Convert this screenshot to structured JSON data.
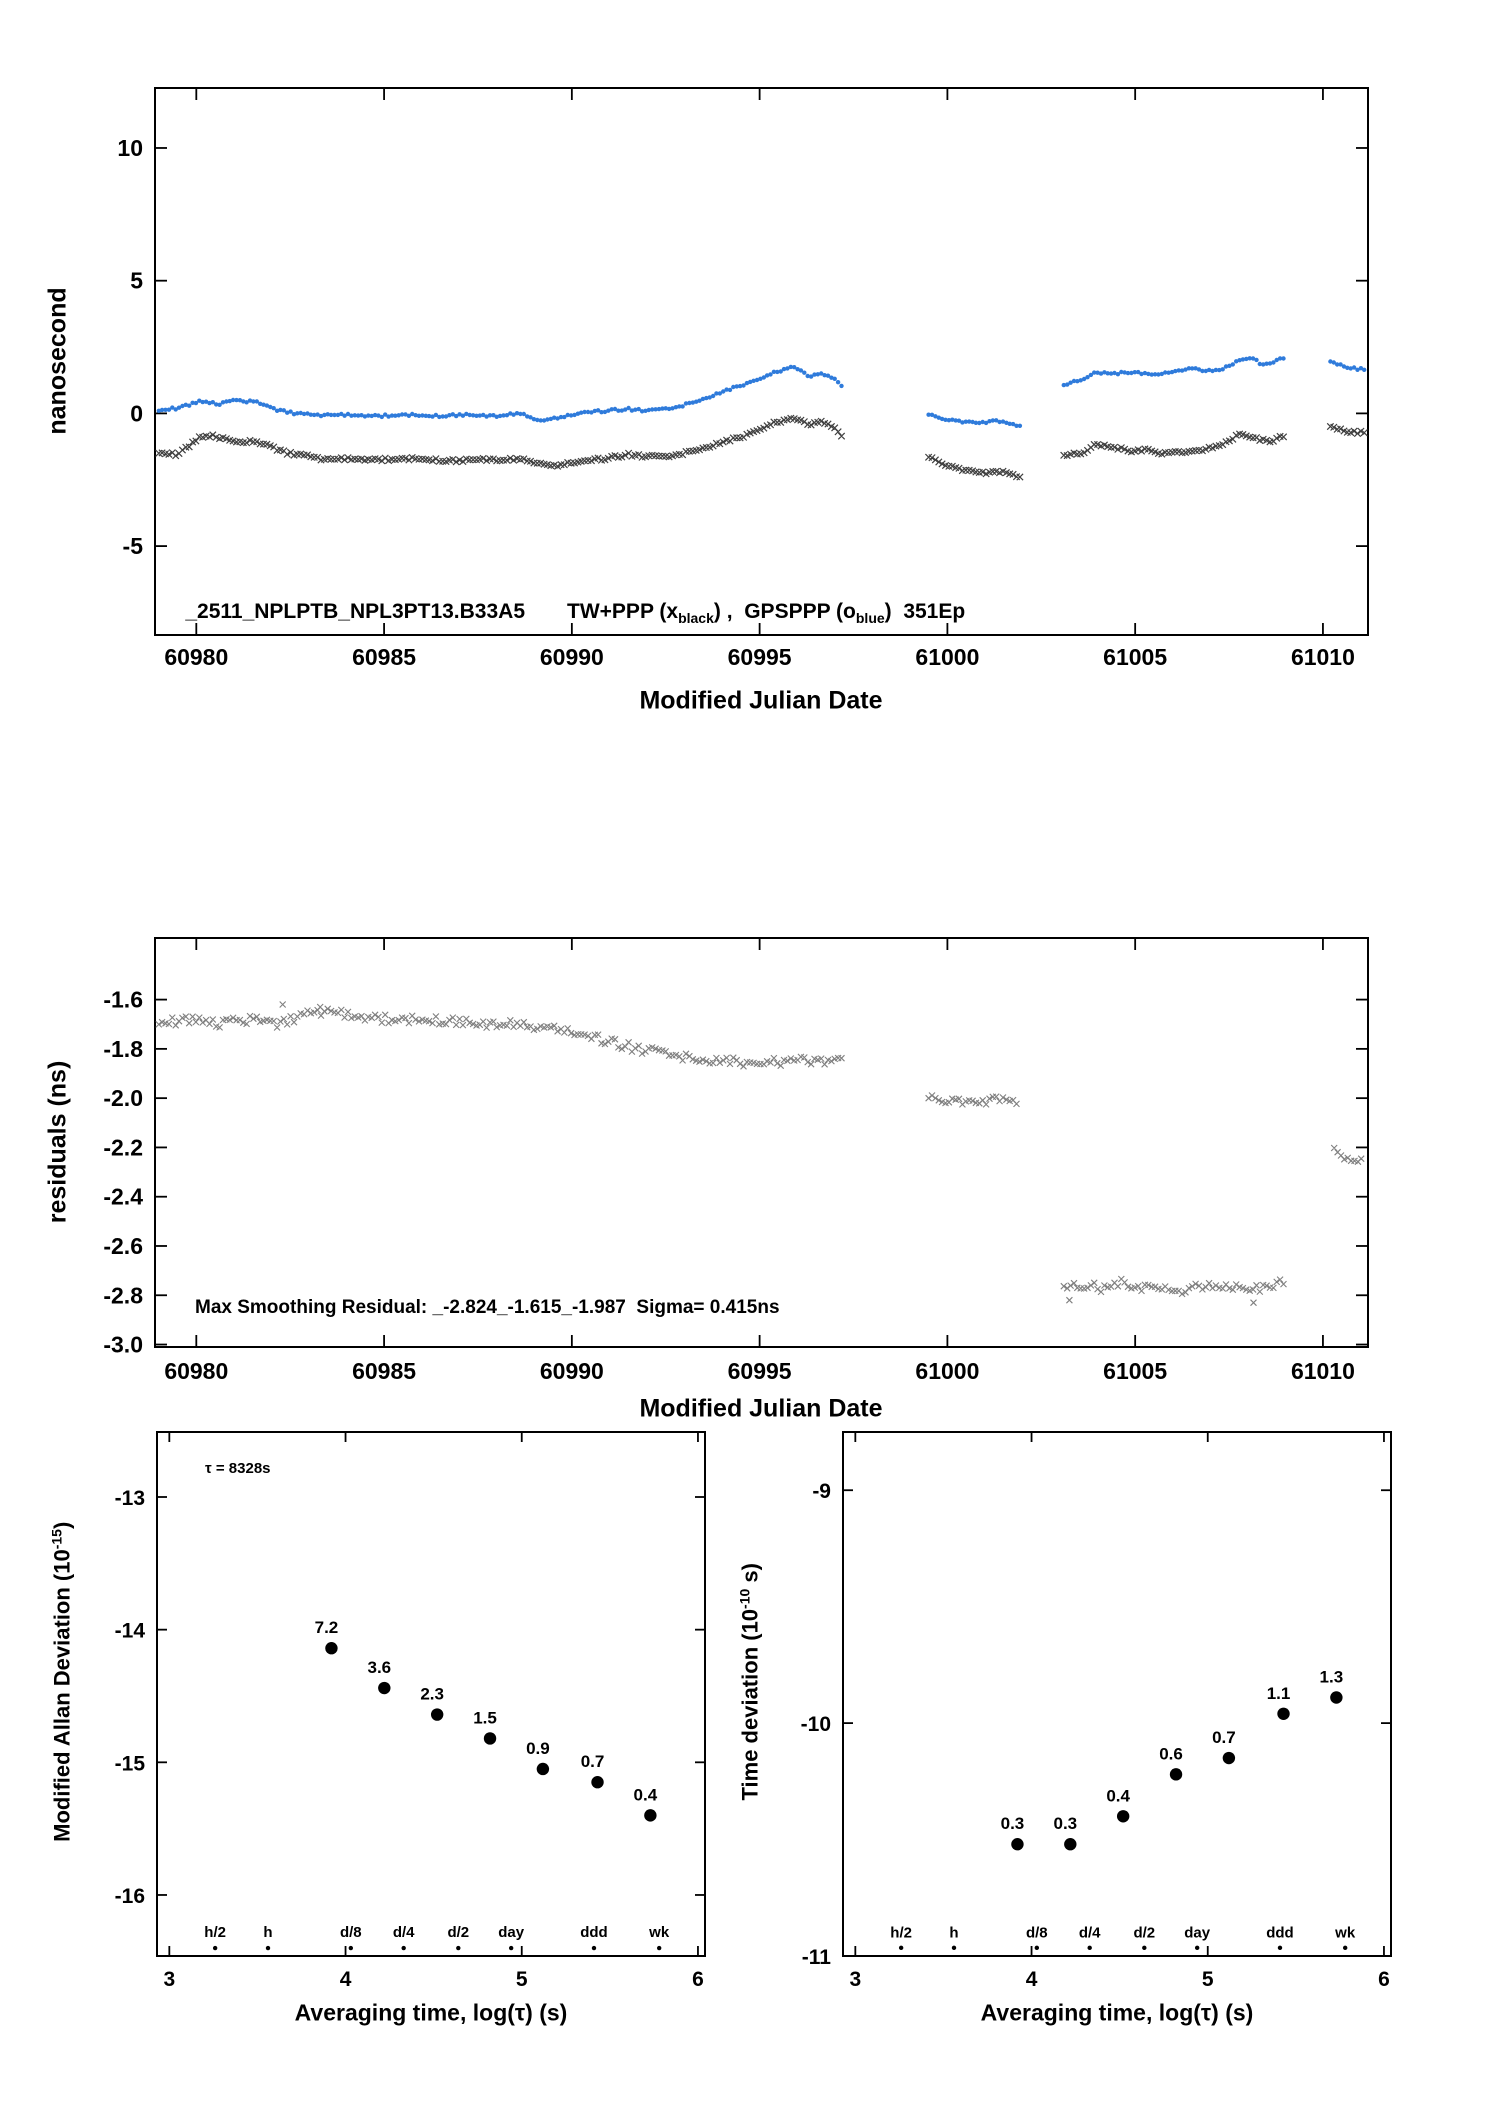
{
  "page": {
    "background": "#ffffff"
  },
  "colors": {
    "axis": "#000000",
    "black_series": "#3f3f3f",
    "blue_series": "#2f7bdb",
    "residual_series": "#7f7f7f",
    "red_label": "#f01010",
    "dot": "#000000"
  },
  "chart_data": [
    {
      "id": "top",
      "type": "scatter",
      "ylabel": "nanosecond",
      "xlabel": "Modified Julian Date",
      "xlim": [
        60978.9,
        61011.2
      ],
      "ylim": [
        -8.35,
        12.26
      ],
      "xticks": [
        "60980",
        "60985",
        "60990",
        "60995",
        "61000",
        "61005",
        "61010"
      ],
      "yticks": [
        "10",
        "5",
        "0",
        "-5"
      ],
      "caption": {
        "id": "_2511_NPLPTB_NPL3PT13.B33A5",
        "tw_prefix": "TW+PPP (x",
        "tw_sub": "black",
        "mid": ") ,  GPSPPP (o",
        "gps_sub": "blue",
        "suffix": ")  351Ep"
      },
      "black_marker": "x",
      "blue_marker": "o",
      "sample_step": 0.09,
      "jitter_black": 0.055,
      "jitter_blue": 0.045,
      "black_segments": [
        [
          [
            60979.0,
            -1.5
          ],
          [
            60979.5,
            -1.55
          ],
          [
            60980.1,
            -0.9
          ],
          [
            60980.5,
            -0.85
          ],
          [
            60981.0,
            -1.1
          ],
          [
            60981.4,
            -1.05
          ],
          [
            60981.9,
            -1.2
          ],
          [
            60982.4,
            -1.5
          ],
          [
            60982.9,
            -1.6
          ],
          [
            60983.4,
            -1.75
          ],
          [
            60984.1,
            -1.7
          ],
          [
            60984.7,
            -1.75
          ],
          [
            60985.3,
            -1.72
          ],
          [
            60985.9,
            -1.7
          ],
          [
            60986.4,
            -1.76
          ],
          [
            60987.0,
            -1.8
          ],
          [
            60987.5,
            -1.72
          ],
          [
            60988.1,
            -1.76
          ],
          [
            60988.6,
            -1.72
          ],
          [
            60989.1,
            -1.85
          ],
          [
            60989.5,
            -2.0
          ],
          [
            60990.0,
            -1.85
          ],
          [
            60990.5,
            -1.75
          ],
          [
            60991.0,
            -1.68
          ],
          [
            60991.5,
            -1.55
          ],
          [
            60992.0,
            -1.62
          ],
          [
            60992.5,
            -1.65
          ],
          [
            60993.0,
            -1.5
          ],
          [
            60993.5,
            -1.3
          ],
          [
            60994.0,
            -1.1
          ],
          [
            60994.5,
            -0.9
          ],
          [
            60995.0,
            -0.6
          ],
          [
            60995.5,
            -0.3
          ],
          [
            60995.9,
            -0.2
          ],
          [
            60996.3,
            -0.42
          ],
          [
            60996.7,
            -0.3
          ],
          [
            60997.0,
            -0.55
          ],
          [
            60997.2,
            -0.9
          ]
        ],
        [
          [
            60999.5,
            -1.65
          ],
          [
            60999.9,
            -1.9
          ],
          [
            61000.3,
            -2.1
          ],
          [
            61000.7,
            -2.2
          ],
          [
            61001.1,
            -2.25
          ],
          [
            61001.5,
            -2.22
          ],
          [
            61001.8,
            -2.32
          ],
          [
            61002.0,
            -2.45
          ]
        ],
        [
          [
            61003.1,
            -1.6
          ],
          [
            61003.6,
            -1.48
          ],
          [
            61004.0,
            -1.15
          ],
          [
            61004.4,
            -1.28
          ],
          [
            61004.9,
            -1.42
          ],
          [
            61005.3,
            -1.36
          ],
          [
            61005.7,
            -1.5
          ],
          [
            61006.1,
            -1.42
          ],
          [
            61006.6,
            -1.45
          ],
          [
            61007.0,
            -1.3
          ],
          [
            61007.4,
            -1.12
          ],
          [
            61007.8,
            -0.78
          ],
          [
            61008.2,
            -0.95
          ],
          [
            61008.6,
            -1.05
          ],
          [
            61009.0,
            -0.85
          ]
        ],
        [
          [
            61010.2,
            -0.5
          ],
          [
            61010.6,
            -0.68
          ],
          [
            61011.1,
            -0.72
          ]
        ]
      ],
      "blue_segments": [
        [
          [
            60979.0,
            0.1
          ],
          [
            60979.5,
            0.2
          ],
          [
            60980.1,
            0.45
          ],
          [
            60980.6,
            0.35
          ],
          [
            60981.1,
            0.5
          ],
          [
            60981.6,
            0.42
          ],
          [
            60982.1,
            0.15
          ],
          [
            60982.6,
            0.0
          ],
          [
            60983.2,
            -0.08
          ],
          [
            60984.0,
            -0.05
          ],
          [
            60984.8,
            -0.1
          ],
          [
            60985.6,
            -0.05
          ],
          [
            60986.4,
            -0.1
          ],
          [
            60987.2,
            -0.06
          ],
          [
            60988.0,
            -0.1
          ],
          [
            60988.6,
            0.0
          ],
          [
            60989.2,
            -0.28
          ],
          [
            60989.7,
            -0.15
          ],
          [
            60990.3,
            0.05
          ],
          [
            60990.9,
            0.1
          ],
          [
            60991.5,
            0.16
          ],
          [
            60992.1,
            0.1
          ],
          [
            60992.7,
            0.2
          ],
          [
            60993.2,
            0.4
          ],
          [
            60993.8,
            0.7
          ],
          [
            60994.4,
            1.0
          ],
          [
            60995.0,
            1.3
          ],
          [
            60995.5,
            1.6
          ],
          [
            60995.9,
            1.75
          ],
          [
            60996.3,
            1.4
          ],
          [
            60996.7,
            1.5
          ],
          [
            60997.0,
            1.3
          ],
          [
            60997.2,
            1.0
          ]
        ],
        [
          [
            60999.5,
            -0.05
          ],
          [
            60999.9,
            -0.2
          ],
          [
            61000.3,
            -0.3
          ],
          [
            61000.8,
            -0.36
          ],
          [
            61001.3,
            -0.3
          ],
          [
            61001.8,
            -0.42
          ],
          [
            61002.0,
            -0.5
          ]
        ],
        [
          [
            61003.1,
            1.05
          ],
          [
            61003.6,
            1.3
          ],
          [
            61004.0,
            1.55
          ],
          [
            61004.5,
            1.5
          ],
          [
            61005.0,
            1.56
          ],
          [
            61005.4,
            1.46
          ],
          [
            61005.9,
            1.55
          ],
          [
            61006.4,
            1.7
          ],
          [
            61006.9,
            1.6
          ],
          [
            61007.3,
            1.66
          ],
          [
            61007.8,
            2.0
          ],
          [
            61008.1,
            2.1
          ],
          [
            61008.4,
            1.82
          ],
          [
            61008.8,
            2.0
          ],
          [
            61009.0,
            2.1
          ]
        ],
        [
          [
            61010.2,
            1.95
          ],
          [
            61010.6,
            1.75
          ],
          [
            61011.1,
            1.65
          ]
        ]
      ]
    },
    {
      "id": "residuals",
      "type": "scatter",
      "ylabel": "residuals (ns)",
      "xlabel": "Modified Julian Date",
      "xlim": [
        60978.9,
        61011.2
      ],
      "ylim": [
        -3.01,
        -1.35
      ],
      "xticks": [
        "60980",
        "60985",
        "60990",
        "60995",
        "61000",
        "61005",
        "61010"
      ],
      "yticks": [
        "-1.6",
        "-1.8",
        "-2.0",
        "-2.2",
        "-2.4",
        "-2.6",
        "-2.8",
        "-3.0"
      ],
      "annotation": "Max Smoothing Residual: _-2.824_-1.615_-1.987  Sigma= 0.415ns",
      "marker": "x",
      "sample_step": 0.09,
      "jitter": 0.018,
      "segments": [
        [
          [
            60979.0,
            -1.7
          ],
          [
            60979.8,
            -1.68
          ],
          [
            60980.6,
            -1.7
          ],
          [
            60981.4,
            -1.68
          ],
          [
            60982.2,
            -1.7
          ],
          [
            60983.0,
            -1.66
          ],
          [
            60983.6,
            -1.65
          ],
          [
            60984.4,
            -1.67
          ],
          [
            60985.2,
            -1.68
          ],
          [
            60986.0,
            -1.68
          ],
          [
            60986.8,
            -1.69
          ],
          [
            60987.6,
            -1.7
          ],
          [
            60988.4,
            -1.7
          ],
          [
            60989.2,
            -1.71
          ],
          [
            60990.0,
            -1.73
          ],
          [
            60990.6,
            -1.75
          ],
          [
            60991.2,
            -1.78
          ],
          [
            60991.8,
            -1.8
          ],
          [
            60992.5,
            -1.82
          ],
          [
            60993.2,
            -1.84
          ],
          [
            60994.0,
            -1.85
          ],
          [
            60994.8,
            -1.86
          ],
          [
            60995.6,
            -1.85
          ],
          [
            60996.4,
            -1.85
          ],
          [
            60997.2,
            -1.84
          ]
        ],
        [
          [
            60999.5,
            -2.0
          ],
          [
            61000.1,
            -2.01
          ],
          [
            61000.7,
            -2.02
          ],
          [
            61001.3,
            -2.01
          ],
          [
            61001.9,
            -2.01
          ]
        ],
        [
          [
            61003.1,
            -2.77
          ],
          [
            61003.6,
            -2.76
          ],
          [
            61004.1,
            -2.77
          ],
          [
            61004.6,
            -2.75
          ],
          [
            61005.1,
            -2.77
          ],
          [
            61005.6,
            -2.76
          ],
          [
            61006.1,
            -2.78
          ],
          [
            61006.6,
            -2.77
          ],
          [
            61007.1,
            -2.76
          ],
          [
            61007.6,
            -2.77
          ],
          [
            61008.1,
            -2.78
          ],
          [
            61008.6,
            -2.76
          ],
          [
            61009.0,
            -2.75
          ]
        ],
        [
          [
            61010.3,
            -2.22
          ],
          [
            61010.7,
            -2.26
          ],
          [
            61011.1,
            -2.26
          ]
        ]
      ],
      "outliers": [
        [
          60982.3,
          -1.62
        ],
        [
          60983.3,
          -1.63
        ],
        [
          61003.25,
          -2.82
        ],
        [
          61008.15,
          -2.83
        ]
      ]
    },
    {
      "id": "mdev",
      "type": "scatter",
      "ylabel_pre": "Modified Allan Deviation (10",
      "ylabel_sup": "-15",
      "ylabel_post": ")",
      "xlabel": "Averaging time, log(τ) (s)",
      "tau_annotation": "τ = 8328s",
      "xlim": [
        2.93,
        6.04
      ],
      "ylim": [
        -16.46,
        -12.51
      ],
      "xticks": [
        "3",
        "4",
        "5",
        "6"
      ],
      "yticks": [
        "-13",
        "-14",
        "-15",
        "-16"
      ],
      "points": [
        {
          "x": 3.92,
          "y": -14.14,
          "label": "7.2"
        },
        {
          "x": 4.22,
          "y": -14.44,
          "label": "3.6"
        },
        {
          "x": 4.52,
          "y": -14.64,
          "label": "2.3"
        },
        {
          "x": 4.82,
          "y": -14.82,
          "label": "1.5"
        },
        {
          "x": 5.12,
          "y": -15.05,
          "label": "0.9"
        },
        {
          "x": 5.43,
          "y": -15.15,
          "label": "0.7"
        },
        {
          "x": 5.73,
          "y": -15.4,
          "label": "0.4"
        }
      ],
      "tau_marks": [
        {
          "x": 3.26,
          "label": "h/2"
        },
        {
          "x": 3.56,
          "label": "h"
        },
        {
          "x": 4.03,
          "label": "d/8"
        },
        {
          "x": 4.33,
          "label": "d/4"
        },
        {
          "x": 4.64,
          "label": "d/2"
        },
        {
          "x": 4.94,
          "label": "day"
        },
        {
          "x": 5.41,
          "label": "ddd"
        },
        {
          "x": 5.78,
          "label": "wk"
        }
      ],
      "tau_label_y": -16.28,
      "tau_dot_y": -16.4
    },
    {
      "id": "tdev",
      "type": "scatter",
      "ylabel_pre": "Time deviation (10",
      "ylabel_sup": "-10",
      "ylabel_post": " s)",
      "xlabel": "Averaging time, log(τ) (s)",
      "xlim": [
        2.93,
        6.04
      ],
      "ylim": [
        -11.0,
        -8.75
      ],
      "xticks": [
        "3",
        "4",
        "5",
        "6"
      ],
      "yticks": [
        "-9",
        "-10",
        "-11"
      ],
      "points": [
        {
          "x": 3.92,
          "y": -10.52,
          "label": "0.3"
        },
        {
          "x": 4.22,
          "y": -10.52,
          "label": "0.3"
        },
        {
          "x": 4.52,
          "y": -10.4,
          "label": "0.4"
        },
        {
          "x": 4.82,
          "y": -10.22,
          "label": "0.6"
        },
        {
          "x": 5.12,
          "y": -10.15,
          "label": "0.7"
        },
        {
          "x": 5.43,
          "y": -9.96,
          "label": "1.1"
        },
        {
          "x": 5.73,
          "y": -9.89,
          "label": "1.3"
        }
      ],
      "tau_marks": [
        {
          "x": 3.26,
          "label": "h/2"
        },
        {
          "x": 3.56,
          "label": "h"
        },
        {
          "x": 4.03,
          "label": "d/8"
        },
        {
          "x": 4.33,
          "label": "d/4"
        },
        {
          "x": 4.64,
          "label": "d/2"
        },
        {
          "x": 4.94,
          "label": "day"
        },
        {
          "x": 5.41,
          "label": "ddd"
        },
        {
          "x": 5.78,
          "label": "wk"
        }
      ],
      "tau_label_y": -10.9,
      "tau_dot_y": -10.965
    }
  ]
}
